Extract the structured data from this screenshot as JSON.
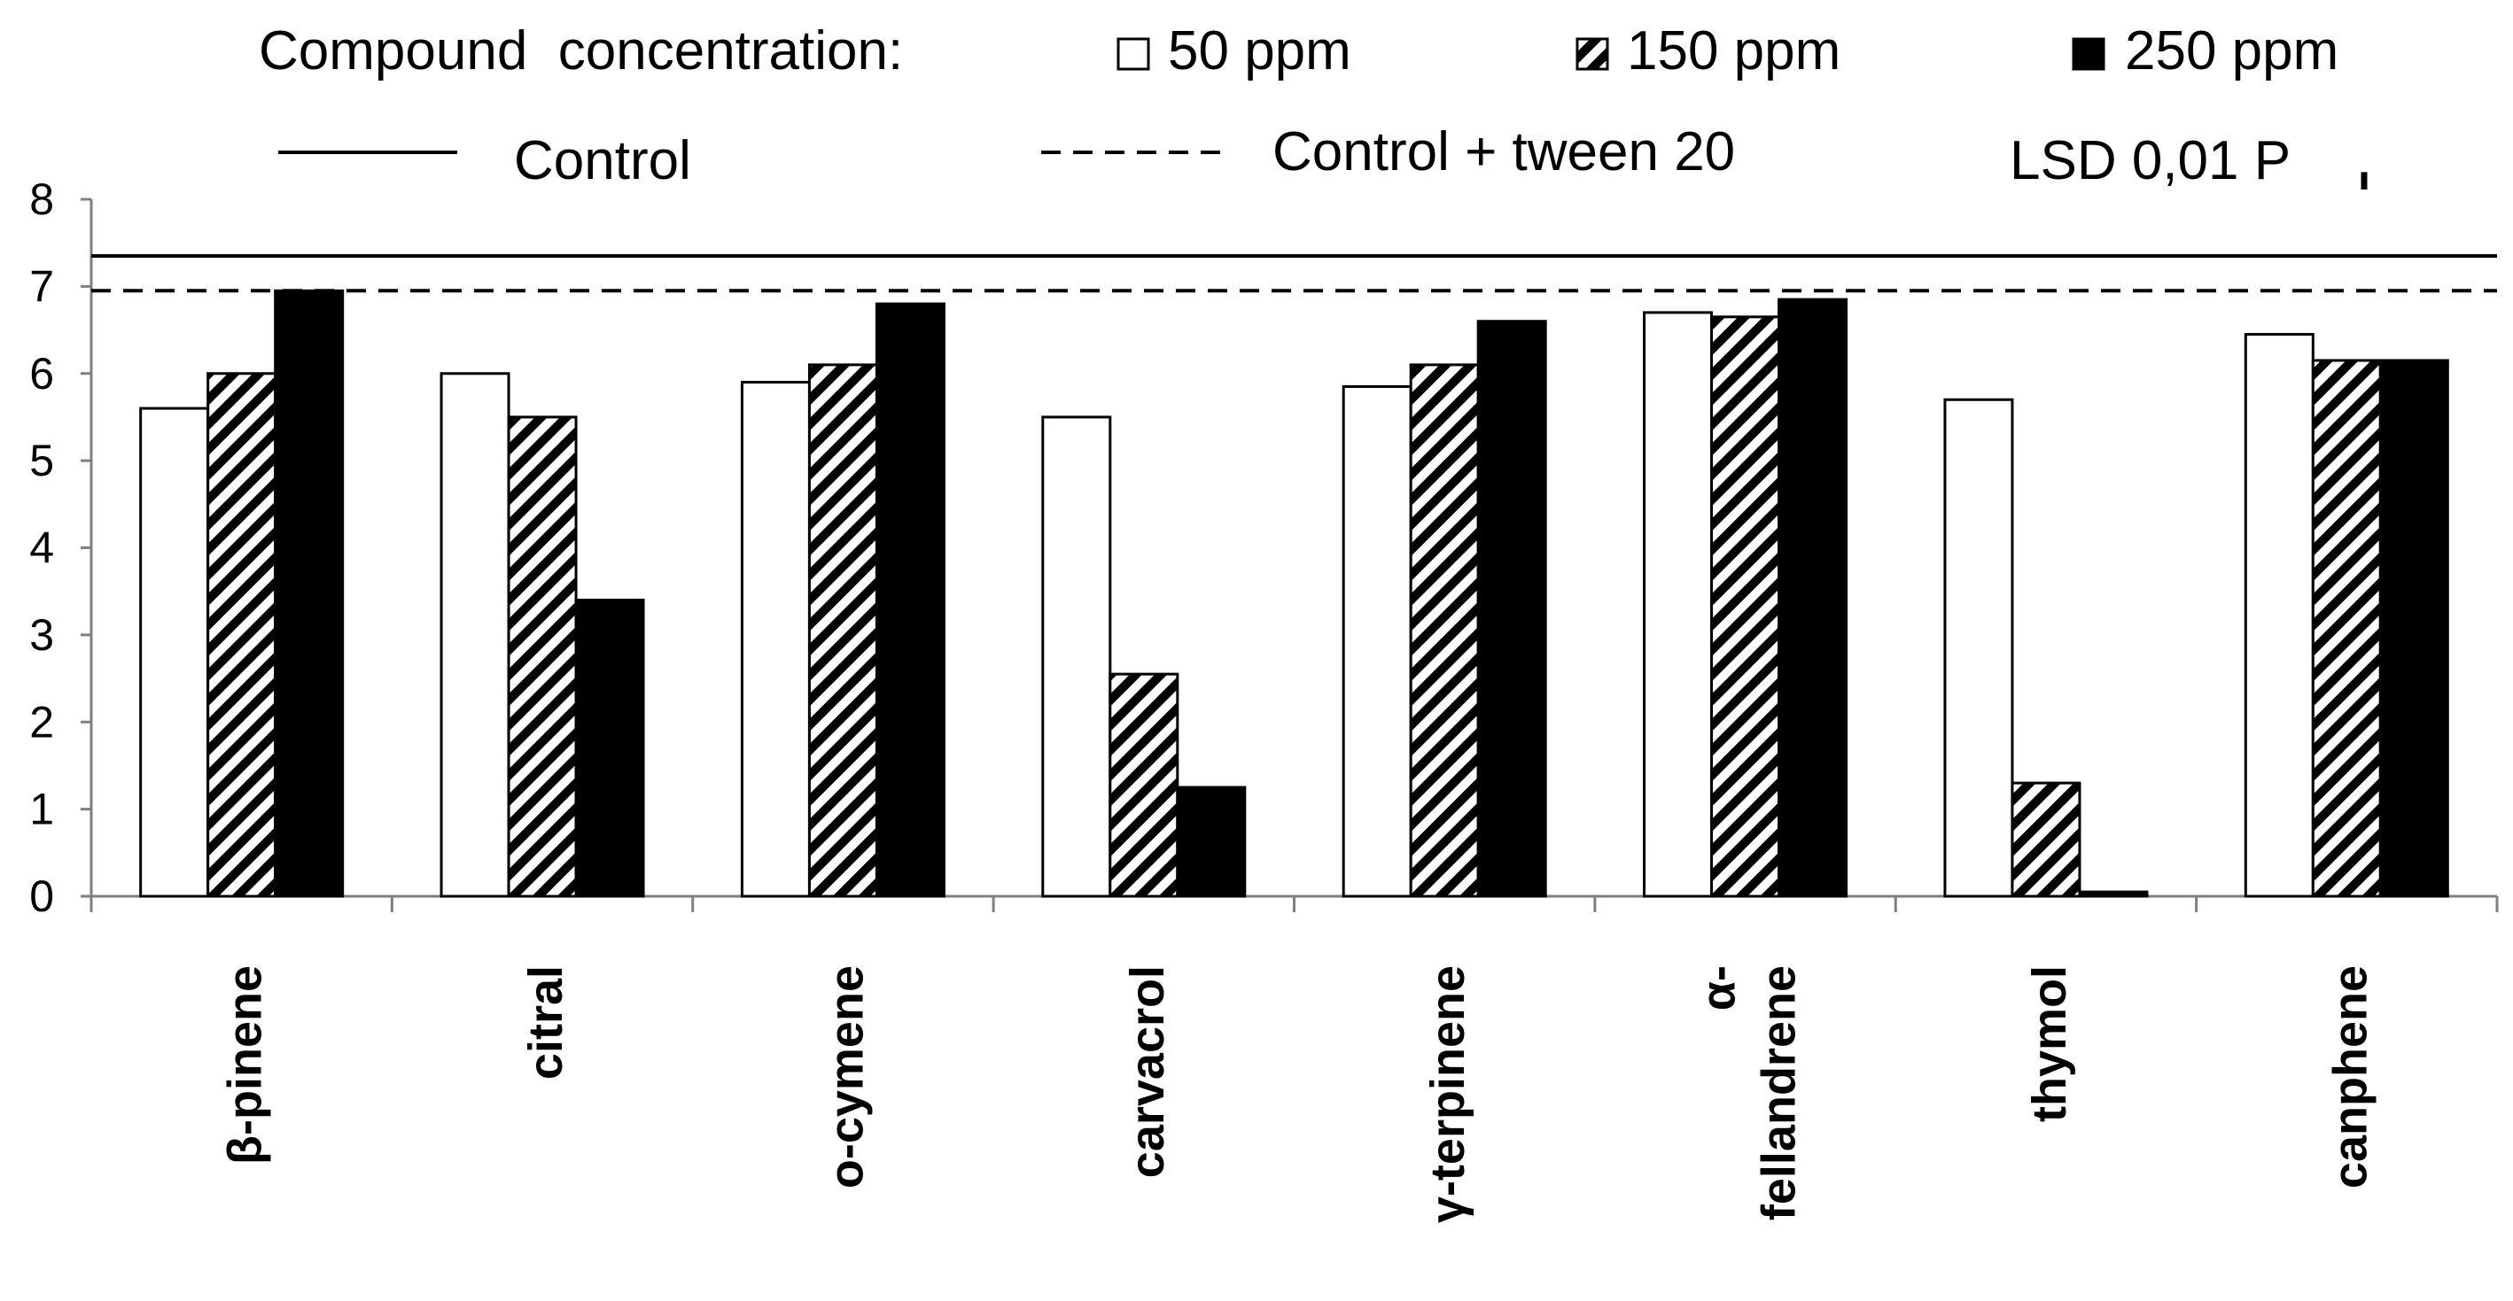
{
  "chart_data": {
    "type": "bar",
    "title": "",
    "xlabel": "",
    "ylabel": "",
    "ylim": [
      0,
      8
    ],
    "yticks": [
      "0",
      "1",
      "2",
      "3",
      "4",
      "5",
      "6",
      "7",
      "8"
    ],
    "legend_title": "Compound  concentration:",
    "categories": [
      [
        "β-pinene"
      ],
      [
        "citral"
      ],
      [
        "o-cymene"
      ],
      [
        "carvacrol"
      ],
      [
        "γ-terpinene"
      ],
      [
        "α-",
        "fellandrene"
      ],
      [
        "thymol"
      ],
      [
        "canphene"
      ]
    ],
    "series": [
      {
        "name": "50 ppm",
        "pattern": "white",
        "values": [
          5.6,
          6.0,
          5.9,
          5.5,
          5.85,
          6.7,
          5.7,
          6.45
        ]
      },
      {
        "name": "150 ppm",
        "pattern": "hatched",
        "values": [
          6.0,
          5.5,
          6.1,
          2.55,
          6.1,
          6.65,
          1.3,
          6.15
        ]
      },
      {
        "name": "250 ppm",
        "pattern": "black",
        "values": [
          6.95,
          3.4,
          6.8,
          1.25,
          6.6,
          6.85,
          0.05,
          6.15
        ]
      }
    ],
    "reference_lines": [
      {
        "name": "Control",
        "style": "solid",
        "value": 7.35
      },
      {
        "name": "Control + tween 20",
        "style": "dashed",
        "value": 6.95
      }
    ],
    "lsd_label": "LSD 0,01 P",
    "lsd_value": 0.2,
    "colors": {
      "bar_fill": "#ffffff",
      "bar_solid": "#000000",
      "stroke": "#000000"
    }
  }
}
